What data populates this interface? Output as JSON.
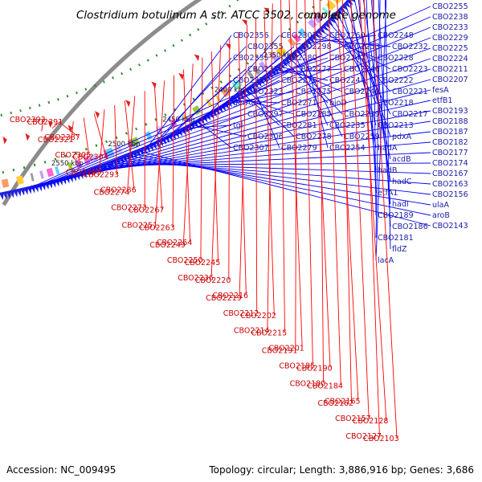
{
  "title": "Clostridium botulinum A str. ATCC 3502, complete genome",
  "footer": {
    "accession": "Accession: NC_009495",
    "stats": "Topology: circular; Length: 3,886,916 bp; Genes: 3,686"
  },
  "scale_labels": [
    "2550 kbp",
    "2500 kbp",
    "2450 kbp",
    "2400 kbp",
    "2350 kbp",
    "2300 kbp",
    "2250 kbp"
  ],
  "blue_labels": [
    "CBO2255",
    "CBO2238",
    "CBO2233",
    "CBO2229",
    "CBO2225",
    "CBO2224",
    "CBO2211",
    "CBO2207",
    "fesA",
    "etfB1",
    "CBO2193",
    "CBO2188",
    "CBO2187",
    "CBO2182",
    "CBO2177",
    "CBO2174",
    "CBO2167",
    "CBO2163",
    "CBO2156",
    "ulaA",
    "aroB",
    "CBO2143",
    "CBO2356",
    "CBO2355",
    "CBO2335",
    "CBO2333",
    "CBO2324",
    "CBO2323",
    "gerAB4",
    "CBO2297",
    "tgl",
    "CBO2306",
    "CBO2307",
    "CBO2302",
    "CBO2298",
    "CBO2280",
    "CBO2277",
    "CBO2276",
    "CBO2275",
    "CBO2271",
    "CBO2285",
    "CBO2281",
    "CBO2278",
    "CBO2279",
    "CBO2260",
    "CBO2253",
    "CBO2247",
    "CBO2246",
    "CBO2244",
    "CBO2240",
    "bioD",
    "CBO2239",
    "CBO2235",
    "CBO2259",
    "CBO2254",
    "CBO2248",
    "CBO2232",
    "CBO2228",
    "CBO2223",
    "CBO2222",
    "CBO2221",
    "CBO2218",
    "CBO2217",
    "CBO2213",
    "pdxA",
    "hadA",
    "acdB",
    "hadB",
    "hadC",
    "etfA1",
    "hadI",
    "CBO2189",
    "CBO2186",
    "CBO2181",
    "fldZ",
    "lacA"
  ],
  "red_labels": [
    "CBO2393",
    "CBO2391",
    "CBO2387",
    "CBO2321",
    "CBO2305",
    "CBO2304",
    "CBO2295",
    "CBO2293",
    "CBO2286",
    "CBO2274",
    "CBO2273",
    "CBO2267",
    "CBO2251",
    "CBO2263",
    "CBO2264",
    "CBO2249",
    "CBO2250",
    "CBO2245",
    "CBO2236",
    "CBO2220",
    "CBO2216",
    "CBO2219",
    "CBO2212",
    "CBO2202",
    "CBO2214",
    "CBO2215",
    "CBO2201",
    "CBO2191",
    "CBO2185",
    "CBO2190",
    "CBO2180",
    "CBO2184",
    "CBO2165",
    "CBO2162",
    "CBO2157",
    "CBO2128",
    "CBO2127",
    "CBO2103"
  ],
  "colors": {
    "backbone": "#8c8c8c",
    "forward_genes": "#2020e0",
    "reverse_genes": "#e02020",
    "blue_label": "#1a1aa6",
    "red_label": "#cc0000",
    "gc_marks": "#2a8a2a"
  }
}
